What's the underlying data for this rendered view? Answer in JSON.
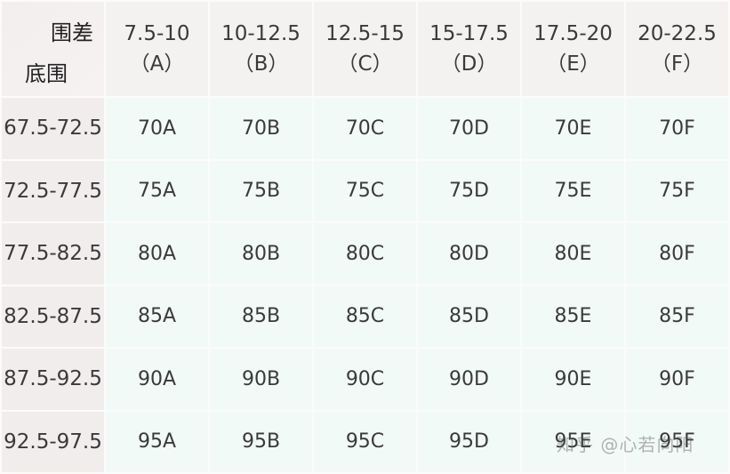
{
  "corner": {
    "top_label": "围差",
    "bottom_label": "底围"
  },
  "columns": [
    {
      "range": "7.5-10",
      "cup": "（A）"
    },
    {
      "range": "10-12.5",
      "cup": "（B）"
    },
    {
      "range": "12.5-15",
      "cup": "（C）"
    },
    {
      "range": "15-17.5",
      "cup": "（D）"
    },
    {
      "range": "17.5-20",
      "cup": "（E）"
    },
    {
      "range": "20-22.5",
      "cup": "（F）"
    }
  ],
  "rows": [
    {
      "label": "67.5-72.5",
      "cells": [
        "70A",
        "70B",
        "70C",
        "70D",
        "70E",
        "70F"
      ]
    },
    {
      "label": "72.5-77.5",
      "cells": [
        "75A",
        "75B",
        "75C",
        "75D",
        "75E",
        "75F"
      ]
    },
    {
      "label": "77.5-82.5",
      "cells": [
        "80A",
        "80B",
        "80C",
        "80D",
        "80E",
        "80F"
      ]
    },
    {
      "label": "82.5-87.5",
      "cells": [
        "85A",
        "85B",
        "85C",
        "85D",
        "85E",
        "85F"
      ]
    },
    {
      "label": "87.5-92.5",
      "cells": [
        "90A",
        "90B",
        "90C",
        "90D",
        "90E",
        "90F"
      ]
    },
    {
      "label": "92.5-97.5",
      "cells": [
        "95A",
        "95B",
        "95C",
        "95D",
        "95E",
        "95F"
      ]
    }
  ],
  "watermark": "知乎 @心若向阳"
}
